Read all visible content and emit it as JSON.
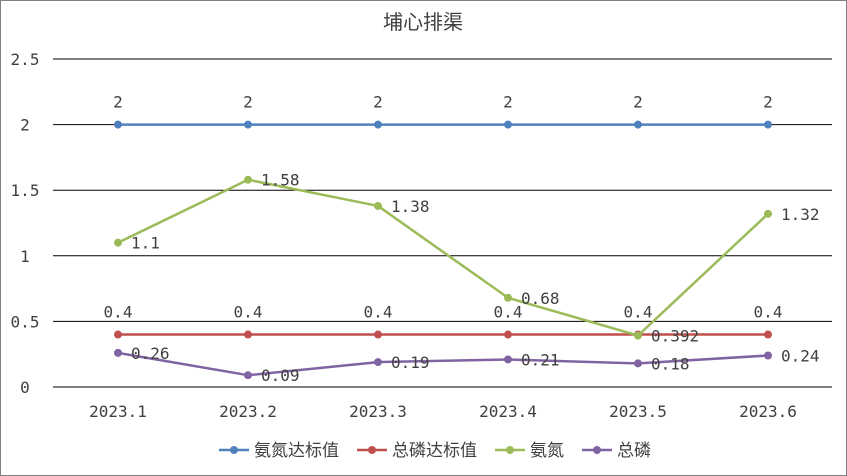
{
  "chart_data": {
    "type": "line",
    "title": "埔心排渠",
    "xlabel": "",
    "ylabel": "",
    "categories": [
      "2023.1",
      "2023.2",
      "2023.3",
      "2023.4",
      "2023.5",
      "2023.6"
    ],
    "ylim": [
      0,
      2.5
    ],
    "y_ticks": [
      "0",
      "0.5",
      "1",
      "1.5",
      "2",
      "2.5"
    ],
    "grid": true,
    "legend_position": "bottom",
    "series": [
      {
        "name": "氨氮达标值",
        "color": "#4f81bd",
        "values": [
          2,
          2,
          2,
          2,
          2,
          2
        ],
        "labels": [
          "2",
          "2",
          "2",
          "2",
          "2",
          "2"
        ]
      },
      {
        "name": "总磷达标值",
        "color": "#c0504d",
        "values": [
          0.4,
          0.4,
          0.4,
          0.4,
          0.4,
          0.4
        ],
        "labels": [
          "0.4",
          "0.4",
          "0.4",
          "0.4",
          "0.4",
          "0.4"
        ]
      },
      {
        "name": "氨氮",
        "color": "#9bbb59",
        "values": [
          1.1,
          1.58,
          1.38,
          0.68,
          0.392,
          1.32
        ],
        "labels": [
          "1.1",
          "1.58",
          "1.38",
          "0.68",
          "0.392",
          "1.32"
        ]
      },
      {
        "name": "总磷",
        "color": "#8064a2",
        "values": [
          0.26,
          0.09,
          0.19,
          0.21,
          0.18,
          0.24
        ],
        "labels": [
          "0.26",
          "0.09",
          "0.19",
          "0.21",
          "0.18",
          "0.24"
        ]
      }
    ]
  }
}
